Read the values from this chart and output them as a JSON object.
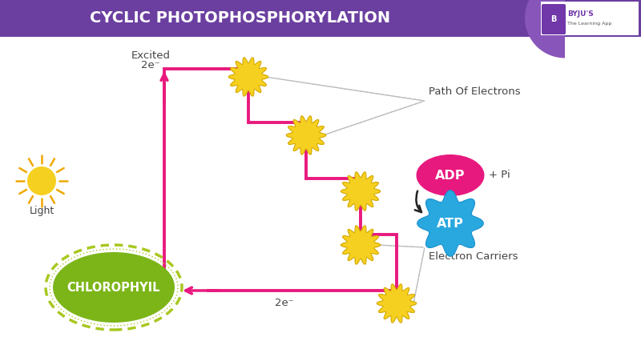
{
  "title": "CYCLIC PHOTOPHOSPHORYLATION",
  "title_bg": "#6b3fa0",
  "title_color": "#ffffff",
  "bg_color": "#ffffff",
  "pink": "#e8197e",
  "yellow_blob": "#f5d020",
  "yellow_blob_edge": "#d4a800",
  "green_chlorophyll": "#7cb518",
  "green_border": "#a8c820",
  "adp_color": "#e8197e",
  "atp_color": "#29a8e0",
  "dashed_color": "#bbbbbb",
  "sun_center": "#f5d020",
  "sun_rays": "#f0a800",
  "dark_text": "#444444",
  "labels": {
    "excited": "Excited",
    "excited_2e": "2e⁻",
    "path_electrons": "Path Of Electrons",
    "electron_carriers": "Electron Carriers",
    "adp": "ADP",
    "atp": "ATP",
    "pi": "+ Pi",
    "chlorophyil": "CHLOROPHYIL",
    "light": "Light",
    "return_2e": "2e⁻"
  },
  "figsize": [
    8.0,
    4.41
  ],
  "dpi": 100
}
